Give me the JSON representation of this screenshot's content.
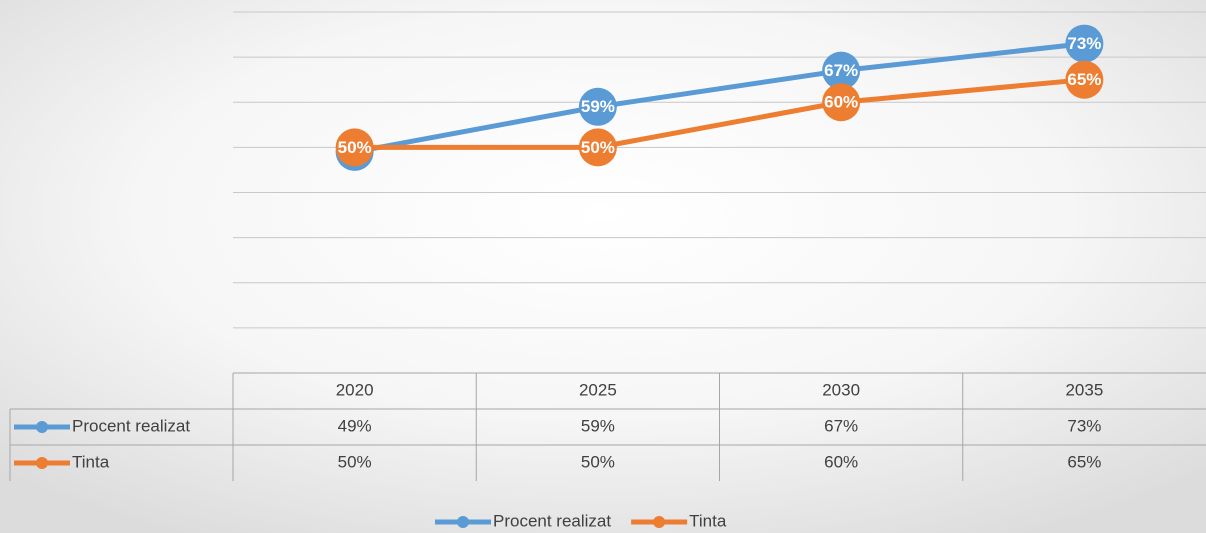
{
  "chart_data": {
    "type": "line",
    "categories": [
      "2020",
      "2025",
      "2030",
      "2035"
    ],
    "series": [
      {
        "name": "Procent realizat",
        "color": "#5b9bd5",
        "values": [
          49,
          59,
          67,
          73
        ],
        "value_labels": [
          "49%",
          "59%",
          "67%",
          "73%"
        ]
      },
      {
        "name": "Tinta",
        "color": "#ed7d31",
        "values": [
          50,
          50,
          60,
          65
        ],
        "value_labels": [
          "50%",
          "50%",
          "60%",
          "65%"
        ]
      }
    ],
    "ylim": [
      0,
      80
    ],
    "yticks": [
      0,
      10,
      20,
      30,
      40,
      50,
      60,
      70,
      80
    ],
    "grid": true,
    "legend": "bottom",
    "data_table": true
  }
}
